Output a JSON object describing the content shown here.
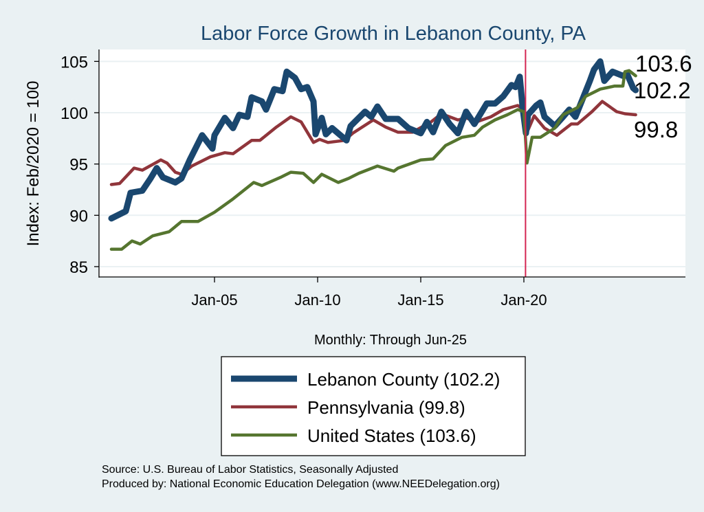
{
  "chart_data": {
    "type": "line",
    "title": "Labor Force Growth in Lebanon  County, PA",
    "xlabel": "Monthly: Through Jun-25",
    "ylabel": "Index: Feb/2020 = 100",
    "ylim": [
      84.3,
      106
    ],
    "xlim": [
      1999.5,
      2028.0
    ],
    "y_ticks": [
      85,
      90,
      95,
      100,
      105
    ],
    "x_ticks": [
      {
        "value": 2005,
        "label": "Jan-05"
      },
      {
        "value": 2010,
        "label": "Jan-10"
      },
      {
        "value": 2015,
        "label": "Jan-15"
      },
      {
        "value": 2020,
        "label": "Jan-20"
      }
    ],
    "reference_line_x": 2020.08,
    "grid": true,
    "legend_position": "bottom",
    "end_labels": [
      "103.6",
      "102.2",
      "99.8"
    ],
    "series": [
      {
        "name": "Lebanon  County (102.2)",
        "color": "#1a476f",
        "width": 9,
        "points": [
          [
            2000.0,
            89.7
          ],
          [
            2000.7,
            90.4
          ],
          [
            2000.93,
            92.2
          ],
          [
            2001.5,
            92.4
          ],
          [
            2001.9,
            93.6
          ],
          [
            2002.2,
            94.6
          ],
          [
            2002.5,
            93.7
          ],
          [
            2003.1,
            93.2
          ],
          [
            2003.4,
            93.6
          ],
          [
            2003.8,
            95.4
          ],
          [
            2004.4,
            97.8
          ],
          [
            2004.9,
            96.5
          ],
          [
            2005.0,
            97.8
          ],
          [
            2005.5,
            99.5
          ],
          [
            2005.9,
            98.5
          ],
          [
            2006.2,
            99.8
          ],
          [
            2006.6,
            99.6
          ],
          [
            2006.8,
            101.5
          ],
          [
            2007.3,
            101.1
          ],
          [
            2007.5,
            100.3
          ],
          [
            2007.9,
            102.3
          ],
          [
            2008.3,
            102.1
          ],
          [
            2008.5,
            104.0
          ],
          [
            2008.9,
            103.4
          ],
          [
            2009.2,
            102.3
          ],
          [
            2009.5,
            102.5
          ],
          [
            2009.8,
            101.1
          ],
          [
            2009.9,
            97.9
          ],
          [
            2010.2,
            99.5
          ],
          [
            2010.4,
            97.9
          ],
          [
            2010.7,
            98.5
          ],
          [
            2011.4,
            97.3
          ],
          [
            2011.6,
            98.7
          ],
          [
            2012.3,
            100.1
          ],
          [
            2012.6,
            99.6
          ],
          [
            2012.9,
            100.6
          ],
          [
            2013.3,
            99.4
          ],
          [
            2013.9,
            99.4
          ],
          [
            2014.4,
            98.5
          ],
          [
            2015.0,
            98.0
          ],
          [
            2015.3,
            99.1
          ],
          [
            2015.6,
            98.1
          ],
          [
            2016.0,
            100.1
          ],
          [
            2016.4,
            98.9
          ],
          [
            2016.8,
            98.0
          ],
          [
            2017.2,
            100.1
          ],
          [
            2017.6,
            98.9
          ],
          [
            2018.2,
            100.9
          ],
          [
            2018.6,
            100.9
          ],
          [
            2019.0,
            101.6
          ],
          [
            2019.4,
            102.7
          ],
          [
            2019.6,
            102.5
          ],
          [
            2019.8,
            103.5
          ],
          [
            2019.95,
            100.3
          ],
          [
            2020.1,
            98.0
          ],
          [
            2020.2,
            99.8
          ],
          [
            2020.6,
            100.7
          ],
          [
            2020.8,
            101.0
          ],
          [
            2021.0,
            99.6
          ],
          [
            2021.5,
            98.7
          ],
          [
            2021.9,
            99.6
          ],
          [
            2022.2,
            100.3
          ],
          [
            2022.5,
            99.6
          ],
          [
            2022.8,
            101.1
          ],
          [
            2023.2,
            103.1
          ],
          [
            2023.4,
            104.2
          ],
          [
            2023.7,
            105.0
          ],
          [
            2023.9,
            103.1
          ],
          [
            2024.3,
            104.0
          ],
          [
            2024.8,
            103.6
          ],
          [
            2025.0,
            103.8
          ],
          [
            2025.3,
            102.4
          ],
          [
            2025.42,
            102.2
          ]
        ]
      },
      {
        "name": "Pennsylvania (99.8)",
        "color": "#90353b",
        "width": 4.5,
        "points": [
          [
            2000.0,
            93.0
          ],
          [
            2000.4,
            93.1
          ],
          [
            2001.1,
            94.6
          ],
          [
            2001.5,
            94.4
          ],
          [
            2002.4,
            95.4
          ],
          [
            2002.7,
            95.1
          ],
          [
            2003.1,
            94.2
          ],
          [
            2003.4,
            94.0
          ],
          [
            2003.9,
            94.8
          ],
          [
            2004.8,
            95.7
          ],
          [
            2005.5,
            96.1
          ],
          [
            2005.9,
            96.0
          ],
          [
            2006.8,
            97.3
          ],
          [
            2007.2,
            97.3
          ],
          [
            2008.0,
            98.6
          ],
          [
            2008.7,
            99.6
          ],
          [
            2009.2,
            99.1
          ],
          [
            2009.8,
            97.1
          ],
          [
            2010.1,
            97.4
          ],
          [
            2010.5,
            97.1
          ],
          [
            2011.3,
            97.3
          ],
          [
            2011.7,
            98.0
          ],
          [
            2012.7,
            99.3
          ],
          [
            2013.3,
            98.6
          ],
          [
            2013.9,
            98.1
          ],
          [
            2014.6,
            98.1
          ],
          [
            2015.5,
            99.1
          ],
          [
            2016.0,
            99.9
          ],
          [
            2016.8,
            99.3
          ],
          [
            2017.2,
            99.5
          ],
          [
            2017.7,
            99.1
          ],
          [
            2018.4,
            99.6
          ],
          [
            2019.0,
            100.3
          ],
          [
            2019.7,
            100.7
          ],
          [
            2020.0,
            100.3
          ],
          [
            2020.2,
            98.3
          ],
          [
            2020.5,
            99.7
          ],
          [
            2021.0,
            98.5
          ],
          [
            2021.6,
            97.8
          ],
          [
            2022.3,
            98.9
          ],
          [
            2022.6,
            98.9
          ],
          [
            2023.3,
            100.1
          ],
          [
            2023.8,
            101.1
          ],
          [
            2024.5,
            100.1
          ],
          [
            2024.9,
            99.9
          ],
          [
            2025.42,
            99.8
          ]
        ]
      },
      {
        "name": "United States (103.6)",
        "color": "#55752f",
        "width": 4.5,
        "points": [
          [
            2000.0,
            86.7
          ],
          [
            2000.5,
            86.7
          ],
          [
            2001.0,
            87.5
          ],
          [
            2001.4,
            87.2
          ],
          [
            2002.0,
            88.0
          ],
          [
            2002.8,
            88.4
          ],
          [
            2003.4,
            89.4
          ],
          [
            2004.2,
            89.4
          ],
          [
            2005.0,
            90.3
          ],
          [
            2005.9,
            91.6
          ],
          [
            2006.9,
            93.2
          ],
          [
            2007.3,
            92.9
          ],
          [
            2008.2,
            93.7
          ],
          [
            2008.7,
            94.2
          ],
          [
            2009.3,
            94.1
          ],
          [
            2009.8,
            93.2
          ],
          [
            2010.2,
            94.0
          ],
          [
            2011.0,
            93.2
          ],
          [
            2011.5,
            93.6
          ],
          [
            2012.0,
            94.1
          ],
          [
            2012.9,
            94.8
          ],
          [
            2013.7,
            94.3
          ],
          [
            2013.9,
            94.6
          ],
          [
            2015.0,
            95.4
          ],
          [
            2015.6,
            95.5
          ],
          [
            2016.2,
            96.8
          ],
          [
            2017.0,
            97.6
          ],
          [
            2017.6,
            97.8
          ],
          [
            2018.0,
            98.6
          ],
          [
            2018.6,
            99.3
          ],
          [
            2019.2,
            99.8
          ],
          [
            2019.7,
            100.3
          ],
          [
            2020.0,
            100.1
          ],
          [
            2020.15,
            95.1
          ],
          [
            2020.4,
            97.6
          ],
          [
            2020.8,
            97.6
          ],
          [
            2021.5,
            98.5
          ],
          [
            2021.9,
            99.8
          ],
          [
            2022.6,
            100.5
          ],
          [
            2023.0,
            101.6
          ],
          [
            2023.7,
            102.3
          ],
          [
            2024.4,
            102.6
          ],
          [
            2024.8,
            102.6
          ],
          [
            2024.9,
            104.0
          ],
          [
            2025.1,
            104.1
          ],
          [
            2025.42,
            103.6
          ]
        ]
      }
    ]
  },
  "footer": {
    "source": "Source: U.S. Bureau of Labor Statistics, Seasonally Adjusted",
    "produced": "Produced by: National Economic Education Delegation (www.NEEDelegation.org)"
  }
}
